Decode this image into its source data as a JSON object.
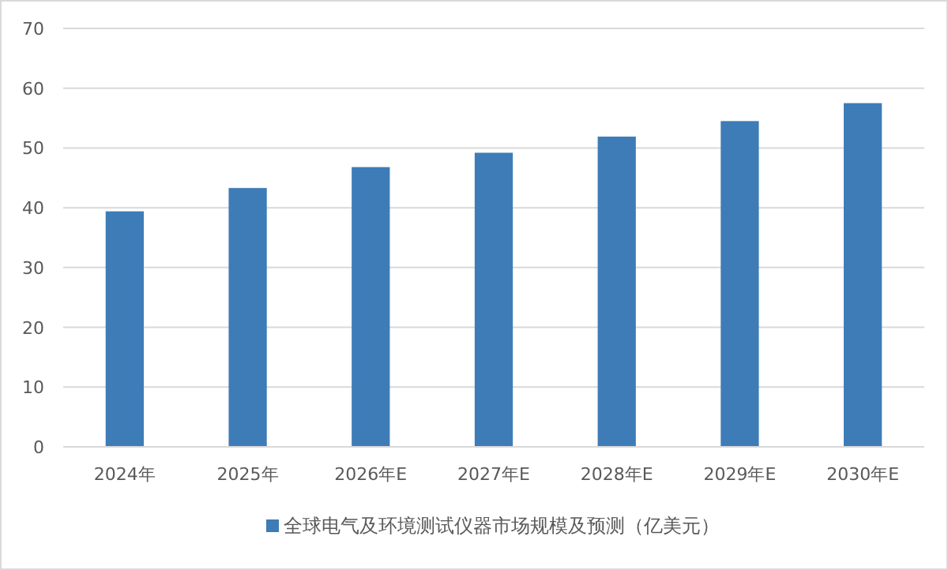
{
  "chart_data": {
    "type": "bar",
    "categories": [
      "2024年",
      "2025年",
      "2026年E",
      "2027年E",
      "2028年E",
      "2029年E",
      "2030年E"
    ],
    "series": [
      {
        "name": "全球电气及环境测试仪器市场规模及预测（亿美元）",
        "color": "#3e7cb8",
        "values": [
          39.4,
          43.3,
          46.8,
          49.2,
          51.9,
          54.5,
          57.5
        ]
      }
    ],
    "ylim": [
      0,
      70
    ],
    "yticks": [
      0,
      10,
      20,
      30,
      40,
      50,
      60,
      70
    ],
    "grid": "y",
    "legend": "bottom"
  }
}
